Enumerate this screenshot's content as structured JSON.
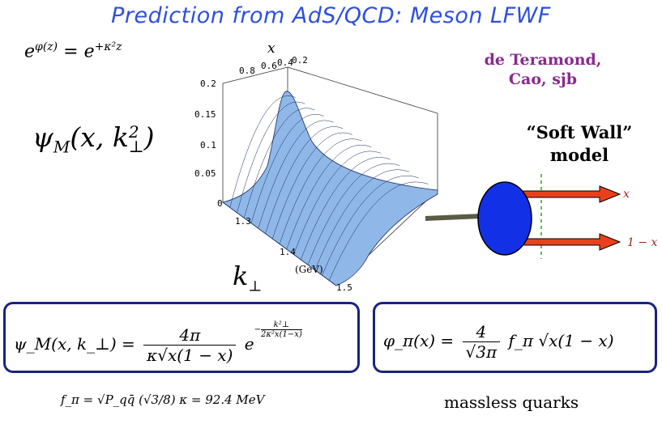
{
  "title": "Prediction from AdS/QCD: Meson LFWF",
  "dilaton_formula": {
    "lhs": "e",
    "lhs_exp": "φ(z)",
    "rhs": "e",
    "rhs_exp": "+κ²z"
  },
  "authors": [
    "de Teramond,",
    "Cao, sjb"
  ],
  "wavefunction_label": {
    "main": "ψ",
    "sub": "M",
    "args": "(x, k",
    "sup": "2",
    "sub2": "⊥",
    "close": ")"
  },
  "model_label": [
    "“Soft Wall”",
    "model"
  ],
  "plot": {
    "x_axis_label": "x",
    "x_ticks": [
      "0.8",
      "0.6",
      "0.4",
      "0.2"
    ],
    "z_ticks": [
      "0.2",
      "0.15",
      "0.1",
      "0.05",
      "0"
    ],
    "k_ticks": [
      "1.3",
      "1.4",
      "1.5"
    ],
    "k_label_main": "k",
    "k_label_sub": "⊥",
    "k_unit": "(GeV)",
    "surface_color": "#8fb8e8",
    "edge_color": "#1a2a5a"
  },
  "diagram": {
    "quark_top": "x",
    "quark_bottom": "1 − x",
    "arrow_color": "#e8401c",
    "meson_color": "#1230e6",
    "dash_color": "#22aa22"
  },
  "formula_left": {
    "lhs": "ψ_M(x, k_⊥) =",
    "num": "4π",
    "den": "κ√x(1 − x)",
    "exp_prefix": "e",
    "exp_sign": "−",
    "exp_num": "k²⊥",
    "exp_den": "2κ²x(1−x)"
  },
  "formula_right": {
    "lhs": "φ_π(x) =",
    "num": "4",
    "den": "√3π",
    "rest": "f_π √x(1 − x)"
  },
  "fpi_formula": "f_π = √P_qq̄ (√3/8) κ = 92.4 MeV",
  "massless_text": "massless quarks"
}
